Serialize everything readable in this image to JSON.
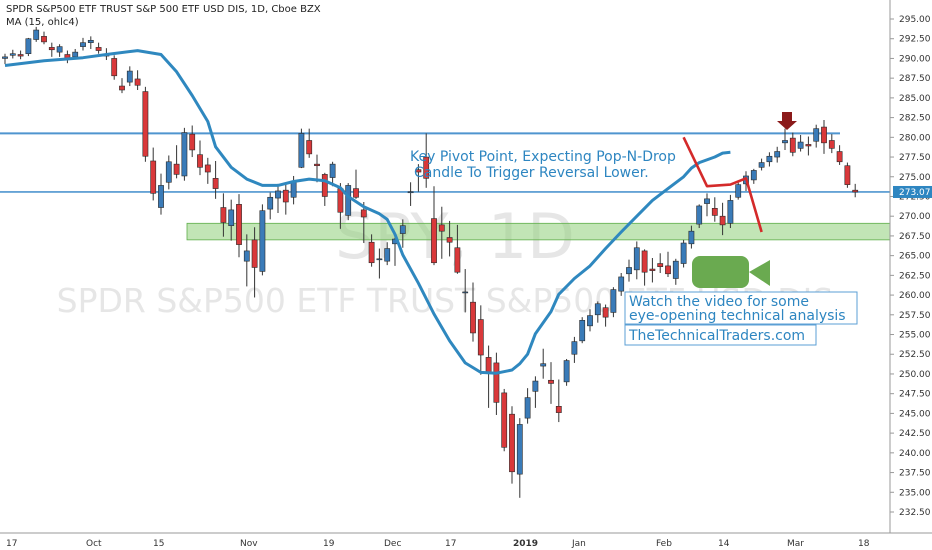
{
  "header": {
    "title": "SPDR S&P500 ETF TRUST S&P 500 ETF USD DIS, 1D, Cboe BZX",
    "ma_label": "MA (15, ohlc4)"
  },
  "watermark": {
    "symbol": "SPY, 1D",
    "name": "SPDR S&P500 ETF TRUST S&P500 ETF USD DIS"
  },
  "annotations": {
    "pivot_line1": "Key Pivot Point, Expecting Pop-N-Drop",
    "pivot_line2": "Candle To Trigger Reversal Lower.",
    "video_line1": "Watch the video for some",
    "video_line2": "eye-opening technical analysis",
    "site": "TheTechnicalTraders.com"
  },
  "colors": {
    "up": "#3a7bb8",
    "down": "#d9383a",
    "ma": "#2f88bf",
    "resistance": "#4f95cf",
    "support_zone": "#8fd07a",
    "projection": "#d42a2a",
    "camera_icon": "#6aaa50",
    "last_price_tag": "#2e86c1"
  },
  "icons": {
    "video": "video-camera-icon",
    "pivot_marker": "down-arrow-icon"
  },
  "chart_data": {
    "type": "candlestick",
    "title": "SPDR S&P500 ETF TRUST S&P 500 ETF USD DIS, 1D, Cboe BZX",
    "ylim": [
      231.0,
      296.5
    ],
    "y_ticks": [
      "295.00",
      "292.50",
      "290.00",
      "287.50",
      "285.00",
      "282.50",
      "280.00",
      "277.50",
      "275.00",
      "272.50",
      "270.00",
      "267.50",
      "265.00",
      "262.50",
      "260.00",
      "257.50",
      "255.00",
      "252.50",
      "250.00",
      "247.50",
      "245.00",
      "242.50",
      "240.00",
      "237.50",
      "235.00",
      "232.50"
    ],
    "x_ticks": [
      "17",
      "Oct",
      "15",
      "Nov",
      "19",
      "Dec",
      "17",
      "2019",
      "Jan",
      "Feb",
      "14",
      "Mar",
      "18"
    ],
    "last_price": "273.07",
    "grid": false,
    "series": [
      {
        "name": "SPY",
        "ohlc": [
          [
            290.0,
            290.6,
            289.3,
            290.2
          ],
          [
            290.4,
            291.1,
            290.0,
            290.6
          ],
          [
            290.5,
            291.0,
            289.9,
            290.3
          ],
          [
            290.6,
            292.6,
            290.3,
            292.5
          ],
          [
            292.4,
            294.0,
            292.1,
            293.6
          ],
          [
            292.8,
            293.4,
            291.8,
            292.1
          ],
          [
            291.4,
            292.0,
            290.2,
            291.1
          ],
          [
            290.8,
            291.8,
            290.2,
            291.5
          ],
          [
            290.5,
            291.0,
            289.4,
            290.0
          ],
          [
            290.2,
            291.2,
            289.9,
            290.8
          ],
          [
            291.5,
            292.6,
            291.0,
            292.0
          ],
          [
            292.0,
            292.8,
            291.2,
            292.3
          ],
          [
            291.4,
            292.0,
            290.6,
            291.0
          ],
          [
            290.5,
            291.3,
            289.8,
            290.3
          ],
          [
            290.0,
            290.4,
            287.3,
            287.8
          ],
          [
            286.5,
            287.5,
            285.6,
            286.0
          ],
          [
            287.0,
            289.0,
            286.5,
            288.4
          ],
          [
            287.4,
            288.5,
            286.0,
            286.6
          ],
          [
            285.8,
            286.4,
            276.9,
            277.6
          ],
          [
            277.0,
            278.7,
            272.0,
            272.9
          ],
          [
            271.1,
            275.4,
            270.2,
            273.9
          ],
          [
            274.3,
            277.7,
            273.4,
            276.9
          ],
          [
            276.6,
            279.0,
            274.8,
            275.3
          ],
          [
            275.1,
            281.2,
            274.5,
            280.6
          ],
          [
            280.4,
            281.5,
            277.5,
            278.4
          ],
          [
            277.8,
            279.6,
            275.2,
            276.2
          ],
          [
            276.5,
            277.4,
            274.1,
            275.6
          ],
          [
            274.8,
            277.0,
            272.2,
            273.5
          ],
          [
            271.1,
            272.9,
            267.4,
            269.2
          ],
          [
            268.8,
            272.1,
            266.9,
            270.8
          ],
          [
            271.5,
            272.8,
            264.8,
            266.4
          ],
          [
            264.3,
            267.7,
            261.1,
            265.6
          ],
          [
            267.0,
            268.6,
            259.7,
            263.5
          ],
          [
            263.0,
            271.5,
            262.5,
            270.7
          ],
          [
            270.9,
            273.0,
            269.6,
            272.4
          ],
          [
            272.3,
            274.1,
            270.4,
            273.2
          ],
          [
            273.3,
            274.1,
            270.2,
            271.8
          ],
          [
            272.4,
            275.1,
            271.5,
            274.4
          ],
          [
            276.2,
            281.1,
            276.1,
            280.5
          ],
          [
            279.6,
            281.1,
            277.4,
            277.9
          ],
          [
            276.6,
            277.8,
            274.3,
            276.4
          ],
          [
            275.3,
            275.5,
            271.3,
            272.5
          ],
          [
            274.9,
            276.9,
            273.8,
            276.6
          ],
          [
            273.5,
            274.2,
            268.4,
            270.5
          ],
          [
            270.1,
            274.2,
            269.5,
            273.9
          ],
          [
            273.5,
            275.9,
            272.2,
            272.4
          ],
          [
            270.8,
            271.8,
            266.6,
            269.9
          ],
          [
            266.7,
            267.7,
            263.6,
            264.1
          ],
          [
            264.6,
            265.9,
            262.1,
            264.6
          ],
          [
            264.3,
            266.7,
            263.8,
            265.9
          ],
          [
            266.5,
            268.0,
            263.7,
            267.1
          ],
          [
            267.8,
            269.6,
            266.0,
            268.8
          ],
          [
            273.0,
            274.3,
            271.3,
            273.1
          ],
          [
            275.9,
            276.6,
            273.1,
            275.6
          ],
          [
            277.5,
            280.5,
            273.6,
            274.8
          ],
          [
            269.7,
            273.8,
            263.8,
            264.1
          ],
          [
            268.9,
            271.2,
            264.6,
            268.1
          ],
          [
            267.3,
            269.4,
            264.9,
            266.7
          ],
          [
            266.0,
            268.9,
            262.7,
            262.9
          ],
          [
            260.4,
            263.3,
            257.8,
            260.4
          ],
          [
            259.1,
            261.6,
            254.1,
            255.2
          ],
          [
            256.9,
            258.7,
            249.9,
            252.4
          ],
          [
            252.1,
            253.6,
            245.7,
            250.1
          ],
          [
            251.4,
            252.7,
            244.8,
            246.4
          ],
          [
            247.6,
            248.1,
            240.2,
            240.7
          ],
          [
            244.9,
            245.9,
            236.1,
            237.6
          ],
          [
            237.3,
            244.4,
            234.3,
            243.6
          ],
          [
            244.4,
            248.2,
            243.7,
            247.0
          ],
          [
            247.8,
            249.7,
            245.7,
            249.1
          ],
          [
            251.0,
            253.2,
            249.4,
            251.3
          ],
          [
            249.2,
            251.5,
            246.2,
            248.8
          ],
          [
            245.9,
            249.3,
            243.9,
            245.1
          ],
          [
            249.0,
            251.9,
            248.5,
            251.7
          ],
          [
            252.5,
            254.7,
            251.4,
            254.1
          ],
          [
            254.2,
            257.2,
            253.9,
            256.8
          ],
          [
            256.1,
            258.2,
            255.4,
            257.4
          ],
          [
            257.5,
            259.2,
            256.5,
            258.9
          ],
          [
            258.4,
            258.8,
            256.0,
            257.2
          ],
          [
            257.8,
            261.0,
            257.2,
            260.7
          ],
          [
            260.5,
            262.8,
            259.9,
            262.3
          ],
          [
            262.7,
            264.5,
            261.7,
            263.5
          ],
          [
            263.2,
            266.8,
            262.0,
            266.0
          ],
          [
            265.6,
            265.8,
            261.2,
            262.9
          ],
          [
            263.3,
            264.7,
            261.6,
            263.1
          ],
          [
            264.0,
            265.3,
            262.8,
            263.6
          ],
          [
            263.7,
            265.5,
            262.3,
            262.7
          ],
          [
            262.1,
            264.6,
            261.3,
            264.3
          ],
          [
            264.0,
            267.0,
            263.5,
            266.6
          ],
          [
            266.5,
            268.8,
            265.9,
            268.1
          ],
          [
            269.0,
            271.5,
            268.5,
            271.3
          ],
          [
            271.6,
            272.9,
            270.0,
            272.2
          ],
          [
            271.0,
            272.4,
            269.3,
            270.1
          ],
          [
            270.0,
            271.7,
            267.6,
            268.9
          ],
          [
            269.1,
            272.7,
            268.5,
            272.0
          ],
          [
            272.4,
            274.3,
            272.1,
            274.0
          ],
          [
            274.1,
            275.7,
            273.2,
            275.1
          ],
          [
            274.6,
            276.0,
            274.1,
            275.8
          ],
          [
            276.2,
            277.3,
            275.8,
            276.8
          ],
          [
            276.9,
            278.1,
            276.3,
            277.6
          ],
          [
            277.5,
            278.8,
            276.8,
            278.2
          ],
          [
            279.3,
            281.1,
            278.4,
            279.6
          ],
          [
            279.9,
            280.6,
            277.6,
            278.1
          ],
          [
            278.6,
            280.3,
            278.2,
            279.4
          ],
          [
            279.1,
            280.1,
            277.7,
            278.9
          ],
          [
            279.5,
            281.6,
            278.7,
            281.1
          ],
          [
            281.3,
            282.2,
            277.9,
            279.3
          ],
          [
            279.6,
            280.4,
            278.0,
            278.6
          ],
          [
            278.2,
            279.0,
            276.5,
            276.9
          ],
          [
            276.4,
            276.8,
            273.6,
            274.0
          ],
          [
            273.3,
            274.1,
            272.4,
            273.07
          ]
        ]
      },
      {
        "name": "MA (15, ohlc4)",
        "points": [
          [
            0,
            289.1
          ],
          [
            5,
            289.7
          ],
          [
            10,
            290.1
          ],
          [
            13,
            290.5
          ],
          [
            17,
            291.0
          ],
          [
            20,
            290.5
          ],
          [
            22,
            288.3
          ],
          [
            24,
            285.3
          ],
          [
            26,
            282.0
          ],
          [
            27,
            278.8
          ],
          [
            29,
            276.2
          ],
          [
            31,
            274.7
          ],
          [
            33,
            273.9
          ],
          [
            35,
            273.9
          ],
          [
            37,
            274.4
          ],
          [
            39,
            274.7
          ],
          [
            41,
            274.5
          ],
          [
            43,
            273.6
          ],
          [
            44,
            272.5
          ],
          [
            46,
            271.2
          ],
          [
            48,
            270.3
          ],
          [
            49,
            269.6
          ],
          [
            50,
            267.7
          ],
          [
            51,
            265.1
          ],
          [
            53,
            261.5
          ],
          [
            55,
            257.6
          ],
          [
            57,
            254.2
          ],
          [
            59,
            251.4
          ],
          [
            61,
            250.2
          ],
          [
            63,
            250.1
          ],
          [
            65,
            250.5
          ],
          [
            66,
            251.3
          ],
          [
            67,
            252.5
          ],
          [
            68,
            255.1
          ],
          [
            70,
            257.9
          ],
          [
            71,
            260.1
          ],
          [
            73,
            262.1
          ],
          [
            75,
            263.7
          ],
          [
            77,
            265.9
          ],
          [
            79,
            268.0
          ],
          [
            81,
            270.0
          ],
          [
            83,
            272.0
          ],
          [
            85,
            273.5
          ],
          [
            87,
            275.0
          ],
          [
            88,
            276.1
          ],
          [
            89,
            276.8
          ],
          [
            91,
            277.5
          ],
          [
            92,
            278.0
          ],
          [
            93,
            278.1
          ]
        ]
      }
    ],
    "resistance_level": 280.5,
    "support_zone": [
      267.0,
      269.1
    ],
    "projection_points": [
      [
        87,
        280.0
      ],
      [
        90,
        273.8
      ],
      [
        93,
        274.0
      ],
      [
        95,
        274.8
      ],
      [
        97,
        268.0
      ]
    ]
  }
}
